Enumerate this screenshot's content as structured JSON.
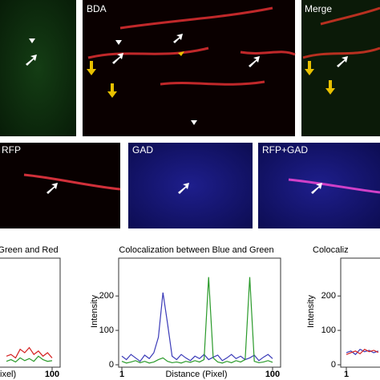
{
  "image_panels": {
    "top": [
      "BDA",
      "Merge"
    ],
    "bottom": [
      "RFP",
      "GAD",
      "RFP+GAD"
    ]
  },
  "chart_data": [
    {
      "type": "line",
      "title": "Green and Red",
      "xlabel": "ixel)",
      "x": [
        70,
        73,
        76,
        79,
        82,
        85,
        88,
        91,
        94,
        97,
        100
      ],
      "series": [
        {
          "name": "Red",
          "color": "#d42020",
          "values": [
            25,
            30,
            20,
            45,
            35,
            50,
            30,
            40,
            25,
            35,
            20
          ]
        },
        {
          "name": "Green",
          "color": "#2a9a2a",
          "values": [
            10,
            15,
            8,
            20,
            12,
            18,
            10,
            25,
            15,
            10,
            12
          ]
        }
      ],
      "xlim": [
        1,
        100
      ],
      "ylim": [
        0,
        310
      ],
      "xticks": [
        100
      ]
    },
    {
      "type": "line",
      "title": "Colocalization between Blue and Green",
      "xlabel": "Distance (Pixel)",
      "ylabel": "Intensity",
      "x": [
        1,
        4,
        7,
        10,
        13,
        16,
        19,
        22,
        25,
        28,
        31,
        34,
        37,
        40,
        43,
        46,
        49,
        52,
        55,
        58,
        61,
        64,
        67,
        70,
        73,
        76,
        79,
        82,
        85,
        88,
        91,
        94,
        97,
        100
      ],
      "series": [
        {
          "name": "Blue",
          "color": "#3a3ab8",
          "values": [
            25,
            15,
            30,
            20,
            10,
            28,
            18,
            35,
            80,
            210,
            120,
            25,
            15,
            30,
            20,
            12,
            25,
            18,
            30,
            15,
            22,
            28,
            12,
            20,
            30,
            18,
            25,
            15,
            20,
            28,
            12,
            22,
            30,
            18
          ]
        },
        {
          "name": "Green",
          "color": "#2a9a2a",
          "values": [
            10,
            5,
            8,
            12,
            6,
            10,
            5,
            8,
            15,
            20,
            10,
            6,
            8,
            5,
            10,
            7,
            12,
            8,
            15,
            255,
            20,
            8,
            5,
            10,
            6,
            12,
            8,
            15,
            255,
            10,
            6,
            8,
            12,
            7
          ]
        }
      ],
      "xlim": [
        1,
        100
      ],
      "ylim": [
        0,
        310
      ],
      "xticks": [
        1,
        100
      ],
      "yticks": [
        0,
        100,
        200
      ]
    },
    {
      "type": "line",
      "title": "Colocaliz",
      "ylabel": "Intensity",
      "x": [
        1,
        4,
        7,
        10,
        13,
        16,
        19,
        22
      ],
      "series": [
        {
          "name": "Blue",
          "color": "#3a3ab8",
          "values": [
            35,
            40,
            30,
            45,
            38,
            42,
            35,
            40
          ]
        },
        {
          "name": "Red",
          "color": "#d42020",
          "values": [
            30,
            35,
            40,
            32,
            45,
            38,
            42,
            36
          ]
        }
      ],
      "xlim": [
        1,
        100
      ],
      "ylim": [
        0,
        310
      ],
      "xticks": [
        1
      ],
      "yticks": [
        0,
        100,
        200
      ]
    }
  ]
}
